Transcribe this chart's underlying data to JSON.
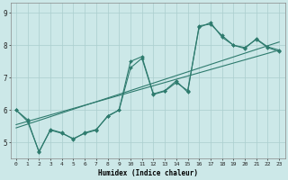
{
  "title": "",
  "xlabel": "Humidex (Indice chaleur)",
  "ylabel": "",
  "bg_color": "#cce8e8",
  "line_color": "#2e7b6e",
  "grid_color": "#aacece",
  "xlim": [
    -0.5,
    23.5
  ],
  "ylim": [
    4.5,
    9.3
  ],
  "yticks": [
    5,
    6,
    7,
    8,
    9
  ],
  "xticks": [
    0,
    1,
    2,
    3,
    4,
    5,
    6,
    7,
    8,
    9,
    10,
    11,
    12,
    13,
    14,
    15,
    16,
    17,
    18,
    19,
    20,
    21,
    22,
    23
  ],
  "series": [
    {
      "x": [
        0,
        1,
        2,
        3,
        4,
        5,
        6,
        7,
        8,
        9,
        10,
        11,
        12,
        13,
        14,
        15,
        16,
        17,
        18,
        19,
        20,
        21,
        22,
        23
      ],
      "y": [
        6.0,
        5.7,
        4.7,
        5.4,
        5.3,
        5.1,
        5.3,
        5.4,
        5.8,
        6.0,
        7.5,
        7.65,
        6.5,
        6.6,
        6.9,
        6.55,
        8.6,
        8.65,
        8.3,
        8.0,
        7.9,
        8.2,
        7.95,
        7.85
      ],
      "marker": true
    },
    {
      "x": [
        0,
        1,
        2,
        3,
        4,
        5,
        6,
        7,
        8,
        9,
        10,
        11,
        12,
        13,
        14,
        15,
        16,
        17,
        18,
        19,
        20,
        21,
        22,
        23
      ],
      "y": [
        6.0,
        5.65,
        4.72,
        5.38,
        5.28,
        5.12,
        5.28,
        5.38,
        5.82,
        6.0,
        7.3,
        7.6,
        6.48,
        6.58,
        6.85,
        6.6,
        8.55,
        8.7,
        8.25,
        8.0,
        7.93,
        8.18,
        7.93,
        7.8
      ],
      "marker": true
    },
    {
      "x": [
        0,
        23
      ],
      "y": [
        5.55,
        7.85
      ],
      "marker": false
    },
    {
      "x": [
        0,
        23
      ],
      "y": [
        5.45,
        8.1
      ],
      "marker": false
    }
  ]
}
